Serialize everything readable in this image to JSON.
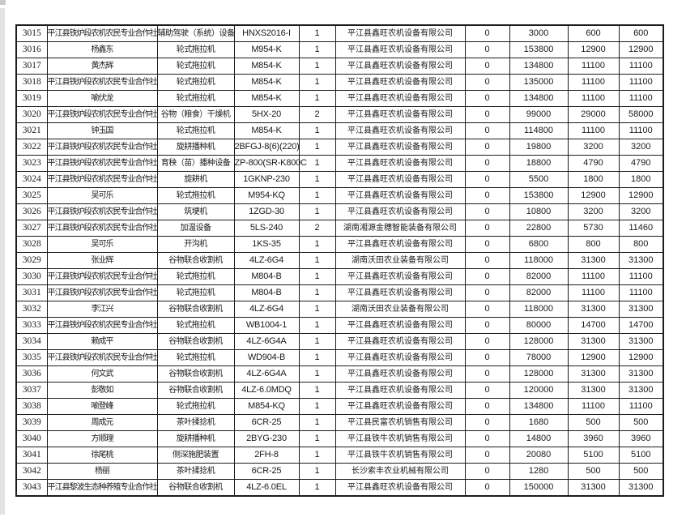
{
  "page": {
    "artifact_colors": {
      "corner_mark": "#c9c9c9",
      "edge_strip": "#e3e3e3"
    },
    "grid_line_color": "#1c1c1c"
  },
  "table": {
    "column_keys": [
      "row_no",
      "applicant",
      "machine_type",
      "model",
      "quantity",
      "dealer",
      "col_7",
      "col_8",
      "col_9",
      "col_10"
    ],
    "rows": [
      [
        "3015",
        "平江县铁炉段农机农民专业合作社",
        "辅助驾驶（系统）设备",
        "HNXS2016-I",
        "1",
        "平江县鑫旺农机设备有限公司",
        "0",
        "3000",
        "600",
        "600"
      ],
      [
        "3016",
        "杨鑫东",
        "轮式拖拉机",
        "M954-K",
        "1",
        "平江县鑫旺农机设备有限公司",
        "0",
        "153800",
        "12900",
        "12900"
      ],
      [
        "3017",
        "黄杰辉",
        "轮式拖拉机",
        "M854-K",
        "1",
        "平江县鑫旺农机设备有限公司",
        "0",
        "134800",
        "11100",
        "11100"
      ],
      [
        "3018",
        "平江县铁炉段农机农民专业合作社",
        "轮式拖拉机",
        "M854-K",
        "1",
        "平江县鑫旺农机设备有限公司",
        "0",
        "135000",
        "11100",
        "11100"
      ],
      [
        "3019",
        "喻伏龙",
        "轮式拖拉机",
        "M854-K",
        "1",
        "平江县鑫旺农机设备有限公司",
        "0",
        "134800",
        "11100",
        "11100"
      ],
      [
        "3020",
        "平江县铁炉段农机农民专业合作社",
        "谷物（粮食）干燥机",
        "5HX-20",
        "2",
        "平江县鑫旺农机设备有限公司",
        "0",
        "99000",
        "29000",
        "58000"
      ],
      [
        "3021",
        "钟玉国",
        "轮式拖拉机",
        "M854-K",
        "1",
        "平江县鑫旺农机设备有限公司",
        "0",
        "114800",
        "11100",
        "11100"
      ],
      [
        "3022",
        "平江县铁炉段农机农民专业合作社",
        "旋耕播种机",
        "2BFGJ-8(6)(220)",
        "1",
        "平江县鑫旺农机设备有限公司",
        "0",
        "19800",
        "3200",
        "3200"
      ],
      [
        "3023",
        "平江县铁炉段农机农民专业合作社",
        "育秧（苗）播种设备",
        "ZP-800(SR-K800C",
        "1",
        "平江县鑫旺农机设备有限公司",
        "0",
        "18800",
        "4790",
        "4790"
      ],
      [
        "3024",
        "平江县铁炉段农机农民专业合作社",
        "旋耕机",
        "1GKNP-230",
        "1",
        "平江县鑫旺农机设备有限公司",
        "0",
        "5500",
        "1800",
        "1800"
      ],
      [
        "3025",
        "吴可乐",
        "轮式拖拉机",
        "M954-KQ",
        "1",
        "平江县鑫旺农机设备有限公司",
        "0",
        "153800",
        "12900",
        "12900"
      ],
      [
        "3026",
        "平江县铁炉段农机农民专业合作社",
        "筑埂机",
        "1ZGD-30",
        "1",
        "平江县鑫旺农机设备有限公司",
        "0",
        "10800",
        "3200",
        "3200"
      ],
      [
        "3027",
        "平江县铁炉段农机农民专业合作社",
        "加温设备",
        "5LS-240",
        "2",
        "湖南湘源金穗智能装备有限公司",
        "0",
        "22800",
        "5730",
        "11460"
      ],
      [
        "3028",
        "吴可乐",
        "开沟机",
        "1KS-35",
        "1",
        "平江县鑫旺农机设备有限公司",
        "0",
        "6800",
        "800",
        "800"
      ],
      [
        "3029",
        "张业辉",
        "谷物联合收割机",
        "4LZ-6G4",
        "1",
        "湖南沃田农业装备有限公司",
        "0",
        "118000",
        "31300",
        "31300"
      ],
      [
        "3030",
        "平江县铁炉段农机农民专业合作社",
        "轮式拖拉机",
        "M804-B",
        "1",
        "平江县鑫旺农机设备有限公司",
        "0",
        "82000",
        "11100",
        "11100"
      ],
      [
        "3031",
        "平江县铁炉段农机农民专业合作社",
        "轮式拖拉机",
        "M804-B",
        "1",
        "平江县鑫旺农机设备有限公司",
        "0",
        "82000",
        "11100",
        "11100"
      ],
      [
        "3032",
        "李江兴",
        "谷物联合收割机",
        "4LZ-6G4",
        "1",
        "湖南沃田农业装备有限公司",
        "0",
        "118000",
        "31300",
        "31300"
      ],
      [
        "3033",
        "平江县铁炉段农机农民专业合作社",
        "轮式拖拉机",
        "WB1004-1",
        "1",
        "平江县鑫旺农机设备有限公司",
        "0",
        "80000",
        "14700",
        "14700"
      ],
      [
        "3034",
        "赖成平",
        "谷物联合收割机",
        "4LZ-6G4A",
        "1",
        "平江县鑫旺农机设备有限公司",
        "0",
        "128000",
        "31300",
        "31300"
      ],
      [
        "3035",
        "平江县铁炉段农机农民专业合作社",
        "轮式拖拉机",
        "WD904-B",
        "1",
        "平江县鑫旺农机设备有限公司",
        "0",
        "78000",
        "12900",
        "12900"
      ],
      [
        "3036",
        "何文武",
        "谷物联合收割机",
        "4LZ-6G4A",
        "1",
        "平江县鑫旺农机设备有限公司",
        "0",
        "128000",
        "31300",
        "31300"
      ],
      [
        "3037",
        "彭敬如",
        "谷物联合收割机",
        "4LZ-6.0MDQ",
        "1",
        "平江县鑫旺农机设备有限公司",
        "0",
        "120000",
        "31300",
        "31300"
      ],
      [
        "3038",
        "喻登峰",
        "轮式拖拉机",
        "M854-KQ",
        "1",
        "平江县鑫旺农机设备有限公司",
        "0",
        "134800",
        "11100",
        "11100"
      ],
      [
        "3039",
        "周成元",
        "茶叶揉捻机",
        "6CR-25",
        "1",
        "平江县民富农机销售有限公司",
        "0",
        "1680",
        "500",
        "500"
      ],
      [
        "3040",
        "方顺理",
        "旋耕播种机",
        "2BYG-230",
        "1",
        "平江县铁牛农机销售有限公司",
        "0",
        "14800",
        "3960",
        "3960"
      ],
      [
        "3041",
        "徐尾桃",
        "侧深施肥装置",
        "2FH-8",
        "1",
        "平江县铁牛农机销售有限公司",
        "0",
        "20080",
        "5100",
        "5100"
      ],
      [
        "3042",
        "杨丽",
        "茶叶揉捻机",
        "6CR-25",
        "1",
        "长沙索丰农业机械有限公司",
        "0",
        "1280",
        "500",
        "500"
      ],
      [
        "3043",
        "平江县黎波生态种养殖专业合作社",
        "谷物联合收割机",
        "4LZ-6.0EL",
        "1",
        "平江县鑫旺农机设备有限公司",
        "0",
        "150000",
        "31300",
        "31300"
      ]
    ]
  }
}
